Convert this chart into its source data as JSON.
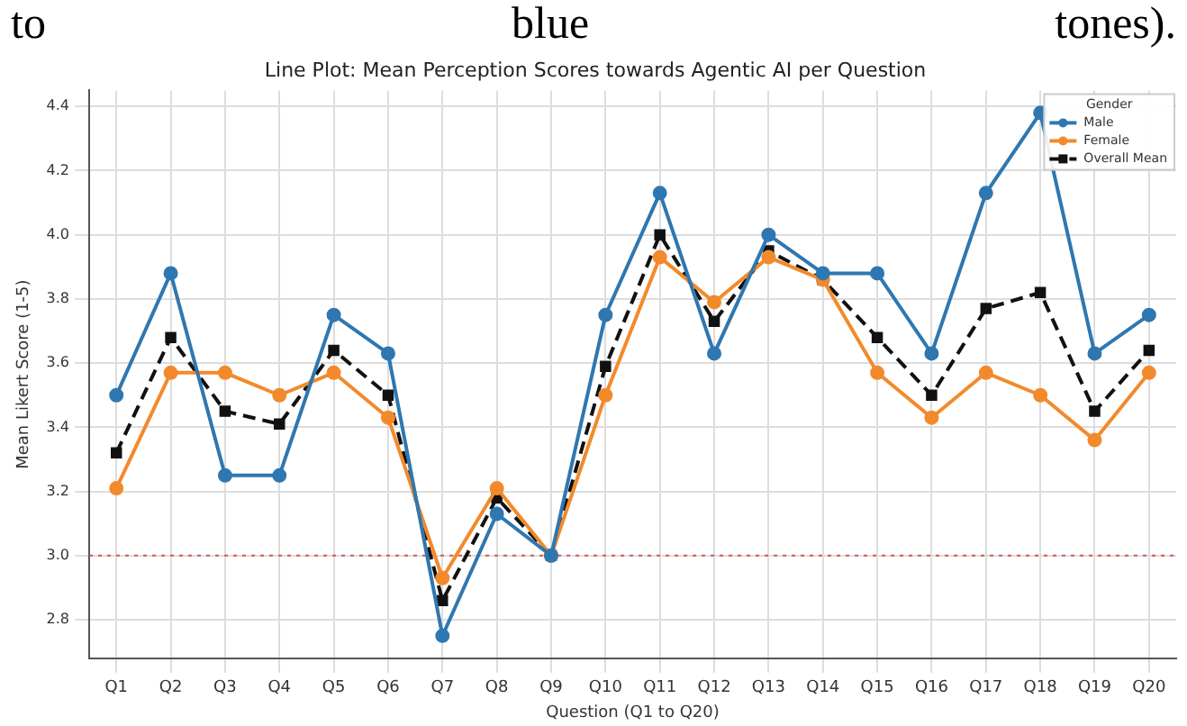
{
  "chart_data": {
    "type": "line",
    "title": "Line Plot: Mean Perception Scores towards Agentic AI per Question",
    "xlabel": "Question (Q1 to Q20)",
    "ylabel": "Mean Likert Score (1-5)",
    "legend_title": "Gender",
    "annotations": [
      "to blue tones)."
    ],
    "categories": [
      "Q1",
      "Q2",
      "Q3",
      "Q4",
      "Q5",
      "Q6",
      "Q7",
      "Q8",
      "Q9",
      "Q10",
      "Q11",
      "Q12",
      "Q13",
      "Q14",
      "Q15",
      "Q16",
      "Q17",
      "Q18",
      "Q19",
      "Q20"
    ],
    "series": [
      {
        "name": "Male",
        "color": "#2f77b0",
        "marker": "circle",
        "line_style": "solid",
        "values": [
          3.5,
          3.88,
          3.25,
          3.25,
          3.75,
          3.63,
          2.75,
          3.13,
          3.0,
          3.75,
          4.13,
          3.63,
          4.0,
          3.88,
          3.88,
          3.63,
          4.13,
          4.38,
          3.63,
          3.75
        ]
      },
      {
        "name": "Female",
        "color": "#f28a2c",
        "marker": "circle",
        "line_style": "solid",
        "values": [
          3.21,
          3.57,
          3.57,
          3.5,
          3.57,
          3.43,
          2.93,
          3.21,
          3.0,
          3.5,
          3.93,
          3.79,
          3.93,
          3.86,
          3.57,
          3.43,
          3.57,
          3.5,
          3.36,
          3.57
        ]
      },
      {
        "name": "Overall Mean",
        "color": "#111111",
        "marker": "square",
        "line_style": "dashed",
        "values": [
          3.32,
          3.68,
          3.45,
          3.41,
          3.64,
          3.5,
          2.86,
          3.18,
          3.0,
          3.59,
          4.0,
          3.73,
          3.95,
          3.86,
          3.68,
          3.5,
          3.77,
          3.82,
          3.45,
          3.64
        ]
      }
    ],
    "ylim": [
      2.68,
      4.45
    ],
    "yticks": [
      2.8,
      {
        "value": 3.0,
        "label": "3.0"
      },
      3.2,
      3.4,
      3.6,
      3.8,
      {
        "value": 4.0,
        "label": "4.0"
      },
      4.2,
      4.4
    ],
    "grid": true,
    "legend": "top right",
    "ref_lines": [
      {
        "axis": "y",
        "value": 3.0,
        "color": "#d9534f",
        "line_style": "dotted"
      }
    ]
  }
}
